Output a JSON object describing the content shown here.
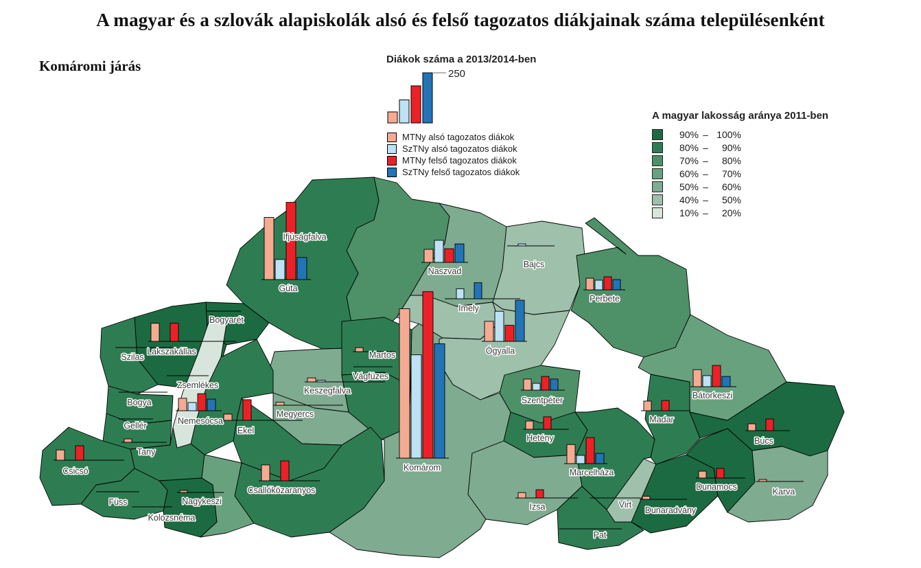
{
  "page_title": "A magyar és a szlovák alapiskolák alsó és felső tagozatos diákjainak száma településenként",
  "district_label": "Komáromi járás",
  "bar_legend": {
    "title": "Diákok száma a 2013/2014-ben",
    "scale_max": 250,
    "scale_max_label": "250",
    "sample_values": [
      55,
      115,
      185,
      250
    ]
  },
  "map_legend": {
    "title": "A magyar lakosság aránya 2011-ben",
    "dash": "–",
    "classes": [
      {
        "id": "c90_100",
        "lo": "90%",
        "hi": "100%",
        "color": "#1C6A41"
      },
      {
        "id": "c80_90",
        "lo": "80%",
        "hi": "90%",
        "color": "#2E7D52"
      },
      {
        "id": "c70_80",
        "lo": "70%",
        "hi": "80%",
        "color": "#4E9068"
      },
      {
        "id": "c60_70",
        "lo": "60%",
        "hi": "70%",
        "color": "#68A17E"
      },
      {
        "id": "c50_60",
        "lo": "50%",
        "hi": "60%",
        "color": "#7FAB90"
      },
      {
        "id": "c40_50",
        "lo": "40%",
        "hi": "50%",
        "color": "#9FC0AB"
      },
      {
        "id": "c10_20",
        "lo": "10%",
        "hi": "20%",
        "color": "#D8E5DC"
      }
    ]
  },
  "chart_data": {
    "type": "bar",
    "title": "Diákok száma a 2013/2014-ben",
    "map_title": "A magyar lakosság aránya 2011-ben",
    "scale_max": 250,
    "series": [
      {
        "name": "MTNy alsó tagozatos diákok",
        "color": "#F5AB92"
      },
      {
        "name": "SzTNy alsó tagozatos diákok",
        "color": "#BEE1F4"
      },
      {
        "name": "MTNy felső tagozatos diákok",
        "color": "#EC2127"
      },
      {
        "name": "SzTNy felső tagozatos diákok",
        "color": "#2274B6"
      }
    ],
    "settlements": [
      {
        "id": "guta",
        "name": "Gúta",
        "pct_class": "c80_90",
        "values": [
          310,
          100,
          385,
          110
        ]
      },
      {
        "id": "ifjusagfalva",
        "name": "Ifjúságfalva",
        "pct_class": "c70_80",
        "values": [
          0,
          0,
          0,
          0
        ]
      },
      {
        "id": "naszvad",
        "name": "Naszvad",
        "pct_class": "c50_60",
        "values": [
          65,
          110,
          68,
          92
        ]
      },
      {
        "id": "imely",
        "name": "Imely",
        "pct_class": "c40_50",
        "values": [
          0,
          50,
          0,
          80
        ]
      },
      {
        "id": "bajcs",
        "name": "Bajcs",
        "pct_class": "c40_50",
        "values": [
          0,
          10,
          0,
          0
        ]
      },
      {
        "id": "ogyalla",
        "name": "Ógyalla",
        "pct_class": "c40_50",
        "values": [
          100,
          150,
          80,
          205
        ]
      },
      {
        "id": "perbete",
        "name": "Perbete",
        "pct_class": "c70_80",
        "values": [
          58,
          48,
          65,
          51
        ]
      },
      {
        "id": "martos",
        "name": "Martos",
        "pct_class": "c80_90",
        "values": [
          20,
          0,
          0,
          0
        ]
      },
      {
        "id": "vagfuzes",
        "name": "Vágfüzes",
        "pct_class": "c80_90",
        "values": [
          0,
          0,
          0,
          0
        ]
      },
      {
        "id": "keszegfalva",
        "name": "Keszegfalva",
        "pct_class": "c50_60",
        "values": [
          20,
          8,
          0,
          0
        ]
      },
      {
        "id": "megyercs",
        "name": "Megyercs",
        "pct_class": "c50_60",
        "values": [
          15,
          0,
          0,
          0
        ]
      },
      {
        "id": "komarom",
        "name": "Komárom",
        "pct_class": "c50_60",
        "values": [
          745,
          515,
          830,
          570
        ]
      },
      {
        "id": "szentpeter",
        "name": "Szentpéter",
        "pct_class": "c70_80",
        "values": [
          55,
          34,
          68,
          55
        ]
      },
      {
        "id": "heteny",
        "name": "Hetény",
        "pct_class": "c80_90",
        "values": [
          41,
          0,
          62,
          0
        ]
      },
      {
        "id": "marcelhaza",
        "name": "Marcelháza",
        "pct_class": "c80_90",
        "values": [
          95,
          41,
          130,
          51
        ]
      },
      {
        "id": "izsa",
        "name": "Izsa",
        "pct_class": "c50_60",
        "values": [
          27,
          0,
          41,
          0
        ]
      },
      {
        "id": "pat",
        "name": "Pat",
        "pct_class": "c80_90",
        "values": [
          0,
          0,
          0,
          0
        ]
      },
      {
        "id": "virt",
        "name": "Virt",
        "pct_class": "c40_50",
        "values": [
          0,
          0,
          0,
          0
        ]
      },
      {
        "id": "madar",
        "name": "Madar",
        "pct_class": "c80_90",
        "values": [
          48,
          0,
          51,
          0
        ]
      },
      {
        "id": "batorkeszi",
        "name": "Bátorkeszi",
        "pct_class": "c60_70",
        "values": [
          85,
          55,
          106,
          51
        ]
      },
      {
        "id": "bucs",
        "name": "Búcs",
        "pct_class": "c90_100",
        "values": [
          34,
          0,
          58,
          0
        ]
      },
      {
        "id": "dunamocs",
        "name": "Dunamocs",
        "pct_class": "c90_100",
        "values": [
          34,
          0,
          48,
          0
        ]
      },
      {
        "id": "dunaradvany",
        "name": "Dunaradvány",
        "pct_class": "c90_100",
        "values": [
          15,
          0,
          0,
          0
        ]
      },
      {
        "id": "karva",
        "name": "Karva",
        "pct_class": "c50_60",
        "values": [
          10,
          0,
          0,
          0
        ]
      },
      {
        "id": "bogyaret",
        "name": "Bogyarét",
        "pct_class": "c90_100",
        "values": [
          0,
          0,
          0,
          0
        ]
      },
      {
        "id": "lakszakallas",
        "name": "Lakszakállas",
        "pct_class": "c90_100",
        "values": [
          90,
          0,
          90,
          0
        ]
      },
      {
        "id": "szilas",
        "name": "Szilas",
        "pct_class": "c80_90",
        "values": [
          0,
          0,
          0,
          0
        ]
      },
      {
        "id": "zsemlekes",
        "name": "Zsemlékes",
        "pct_class": "c10_20",
        "values": [
          0,
          0,
          0,
          0
        ]
      },
      {
        "id": "bogya",
        "name": "Bogya",
        "pct_class": "c80_90",
        "values": [
          0,
          0,
          0,
          0
        ]
      },
      {
        "id": "geller",
        "name": "Gellér",
        "pct_class": "c80_90",
        "values": [
          0,
          0,
          0,
          0
        ]
      },
      {
        "id": "tany",
        "name": "Tany",
        "pct_class": "c80_90",
        "values": [
          17,
          0,
          0,
          0
        ]
      },
      {
        "id": "nemesocsa",
        "name": "Nemesócsa",
        "pct_class": "c80_90",
        "values": [
          62,
          41,
          85,
          58
        ]
      },
      {
        "id": "ekel",
        "name": "Ekel",
        "pct_class": "c80_90",
        "values": [
          31,
          0,
          103,
          0
        ]
      },
      {
        "id": "csicso",
        "name": "Csicsó",
        "pct_class": "c80_90",
        "values": [
          51,
          0,
          72,
          0
        ]
      },
      {
        "id": "fuss",
        "name": "Füss",
        "pct_class": "c80_90",
        "values": [
          0,
          0,
          0,
          0
        ]
      },
      {
        "id": "kolozsnema",
        "name": "Kolozsnéma",
        "pct_class": "c90_100",
        "values": [
          0,
          0,
          0,
          0
        ]
      },
      {
        "id": "nagykeszi",
        "name": "Nagykeszi",
        "pct_class": "c60_70",
        "values": [
          10,
          0,
          0,
          0
        ]
      },
      {
        "id": "csallokozaranyos",
        "name": "Csallóközaranyos",
        "pct_class": "c80_90",
        "values": [
          79,
          0,
          99,
          0
        ]
      }
    ]
  }
}
